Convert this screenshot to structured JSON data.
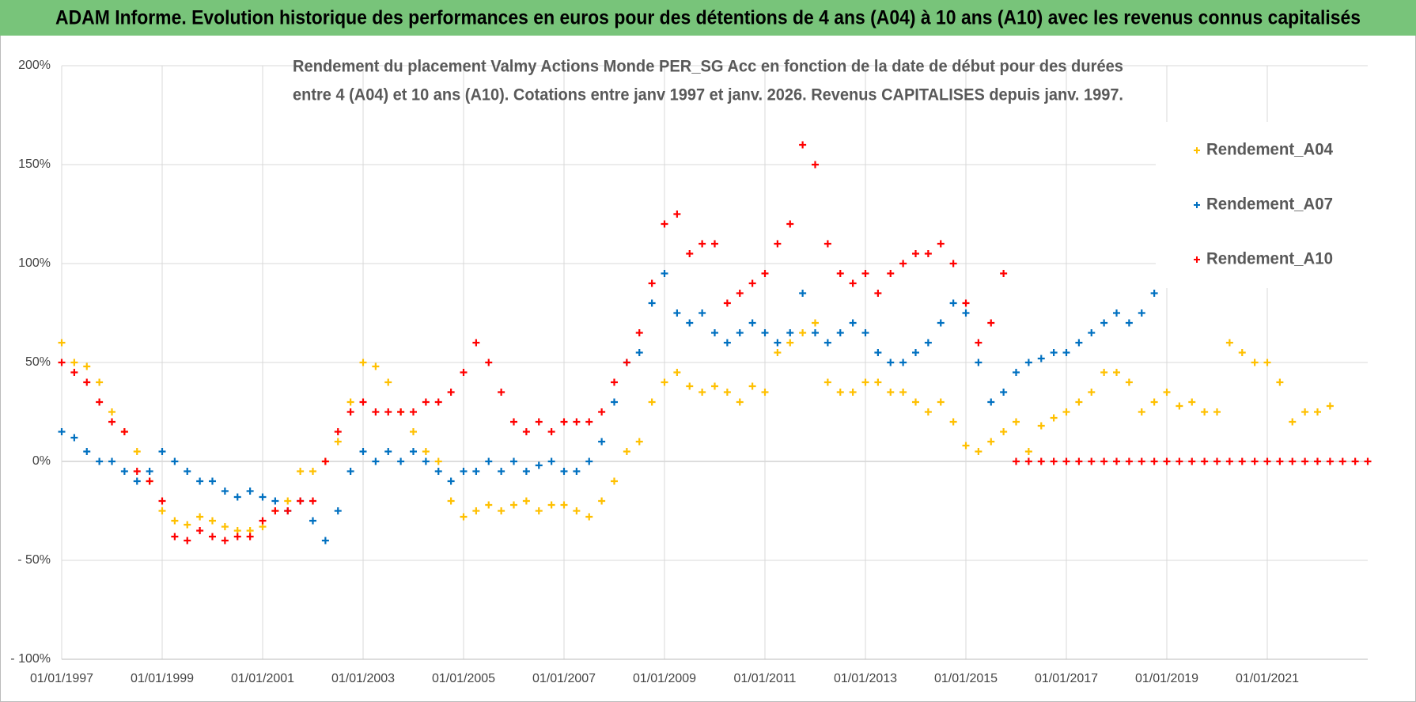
{
  "header": "ADAM Informe. Evolution historique des performances en euros pour des détentions de 4 ans (A04) à 10 ans (A10) avec les revenus connus capitalisés",
  "chart_data": {
    "type": "scatter",
    "title_lines": [
      "Rendement du placement Valmy Actions Monde PER_SG Acc en fonction de la date de début pour des durées",
      "entre 4 (A04) et 10 ans (A10). Cotations entre janv 1997 et janv. 2026. Revenus CAPITALISES depuis janv. 1997."
    ],
    "x": [
      1997,
      1997.25,
      1997.5,
      1997.75,
      1998,
      1998.25,
      1998.5,
      1998.75,
      1999,
      1999.25,
      1999.5,
      1999.75,
      2000,
      2000.25,
      2000.5,
      2000.75,
      2001,
      2001.25,
      2001.5,
      2001.75,
      2002,
      2002.25,
      2002.5,
      2002.75,
      2003,
      2003.25,
      2003.5,
      2003.75,
      2004,
      2004.25,
      2004.5,
      2004.75,
      2005,
      2005.25,
      2005.5,
      2005.75,
      2006,
      2006.25,
      2006.5,
      2006.75,
      2007,
      2007.25,
      2007.5,
      2007.75,
      2008,
      2008.25,
      2008.5,
      2008.75,
      2009,
      2009.25,
      2009.5,
      2009.75,
      2010,
      2010.25,
      2010.5,
      2010.75,
      2011,
      2011.25,
      2011.5,
      2011.75,
      2012,
      2012.25,
      2012.5,
      2012.75,
      2013,
      2013.25,
      2013.5,
      2013.75,
      2014,
      2014.25,
      2014.5,
      2014.75,
      2015,
      2015.25,
      2015.5,
      2015.75,
      2016,
      2016.25,
      2016.5,
      2016.75,
      2017,
      2017.25,
      2017.5,
      2017.75,
      2018,
      2018.25,
      2018.5,
      2018.75,
      2019,
      2019.25,
      2019.5,
      2019.75,
      2020,
      2020.25,
      2020.5,
      2020.75,
      2021,
      2021.25,
      2021.5,
      2021.75,
      2022,
      2022.25,
      2022.5,
      2022.75,
      2023
    ],
    "series": [
      {
        "name": "Rendement_A04",
        "color": "#ffc000",
        "values": [
          60,
          50,
          48,
          40,
          25,
          15,
          5,
          -10,
          -25,
          -30,
          -32,
          -28,
          -30,
          -33,
          -35,
          -35,
          -33,
          -25,
          -20,
          -5,
          -5,
          0,
          10,
          30,
          50,
          48,
          40,
          25,
          15,
          5,
          0,
          -20,
          -28,
          -25,
          -22,
          -25,
          -22,
          -20,
          -25,
          -22,
          -22,
          -25,
          -28,
          -20,
          -10,
          5,
          10,
          30,
          40,
          45,
          38,
          35,
          38,
          35,
          30,
          38,
          35,
          55,
          60,
          65,
          70,
          40,
          35,
          35,
          40,
          40,
          35,
          35,
          30,
          25,
          30,
          20,
          8,
          5,
          10,
          15,
          20,
          5,
          18,
          22,
          25,
          30,
          35,
          45,
          45,
          40,
          25,
          30,
          35,
          28,
          30,
          25,
          25,
          60,
          55,
          50,
          50,
          40,
          20,
          25,
          25,
          28,
          null,
          null,
          null
        ]
      },
      {
        "name": "Rendement_A07",
        "color": "#0070c0",
        "values": [
          15,
          12,
          5,
          0,
          0,
          -5,
          -10,
          -5,
          5,
          0,
          -5,
          -10,
          -10,
          -15,
          -18,
          -15,
          -18,
          -20,
          -25,
          -20,
          -30,
          -40,
          -25,
          -5,
          5,
          0,
          5,
          0,
          5,
          0,
          -5,
          -10,
          -5,
          -5,
          0,
          -5,
          0,
          -5,
          -2,
          0,
          -5,
          -5,
          0,
          10,
          30,
          50,
          55,
          80,
          95,
          75,
          70,
          75,
          65,
          60,
          65,
          70,
          65,
          60,
          65,
          85,
          65,
          60,
          65,
          70,
          65,
          55,
          50,
          50,
          55,
          60,
          70,
          80,
          75,
          50,
          30,
          35,
          45,
          50,
          52,
          55,
          55,
          60,
          65,
          70,
          75,
          70,
          75,
          85,
          null,
          null,
          null,
          null,
          null,
          null,
          null,
          null,
          null,
          null,
          null,
          null,
          null,
          null,
          null,
          null,
          null
        ]
      },
      {
        "name": "Rendement_A10",
        "color": "#ff0000",
        "values": [
          50,
          45,
          40,
          30,
          20,
          15,
          -5,
          -10,
          -20,
          -38,
          -40,
          -35,
          -38,
          -40,
          -38,
          -38,
          -30,
          -25,
          -25,
          -20,
          -20,
          0,
          15,
          25,
          30,
          25,
          25,
          25,
          25,
          30,
          30,
          35,
          45,
          60,
          50,
          35,
          20,
          15,
          20,
          15,
          20,
          20,
          20,
          25,
          40,
          50,
          65,
          90,
          120,
          125,
          105,
          110,
          110,
          80,
          85,
          90,
          95,
          110,
          120,
          160,
          150,
          110,
          95,
          90,
          95,
          85,
          95,
          100,
          105,
          105,
          110,
          100,
          80,
          60,
          70,
          95,
          0,
          0,
          0,
          0,
          0,
          0,
          0,
          0,
          0,
          0,
          0,
          0,
          0,
          0,
          0,
          0,
          0,
          0,
          0,
          0,
          0,
          0,
          0,
          0,
          0,
          0,
          0,
          0,
          0
        ]
      }
    ],
    "xlim": [
      1997,
      2023
    ],
    "xticks": [
      {
        "value": 1997,
        "label": "01/01/1997"
      },
      {
        "value": 1999,
        "label": "01/01/1999"
      },
      {
        "value": 2001,
        "label": "01/01/2001"
      },
      {
        "value": 2003,
        "label": "01/01/2003"
      },
      {
        "value": 2005,
        "label": "01/01/2005"
      },
      {
        "value": 2007,
        "label": "01/01/2007"
      },
      {
        "value": 2009,
        "label": "01/01/2009"
      },
      {
        "value": 2011,
        "label": "01/01/2011"
      },
      {
        "value": 2013,
        "label": "01/01/2013"
      },
      {
        "value": 2015,
        "label": "01/01/2015"
      },
      {
        "value": 2017,
        "label": "01/01/2017"
      },
      {
        "value": 2019,
        "label": "01/01/2019"
      },
      {
        "value": 2021,
        "label": "01/01/2021"
      }
    ],
    "ylim": [
      -100,
      200
    ],
    "yticks": [
      {
        "value": -100,
        "label": "- 100%"
      },
      {
        "value": -50,
        "label": "- 50%"
      },
      {
        "value": 0,
        "label": "0%"
      },
      {
        "value": 50,
        "label": "50%"
      },
      {
        "value": 100,
        "label": "100%"
      },
      {
        "value": 150,
        "label": "150%"
      },
      {
        "value": 200,
        "label": "200%"
      }
    ],
    "grid": true,
    "legend": "top-right"
  }
}
